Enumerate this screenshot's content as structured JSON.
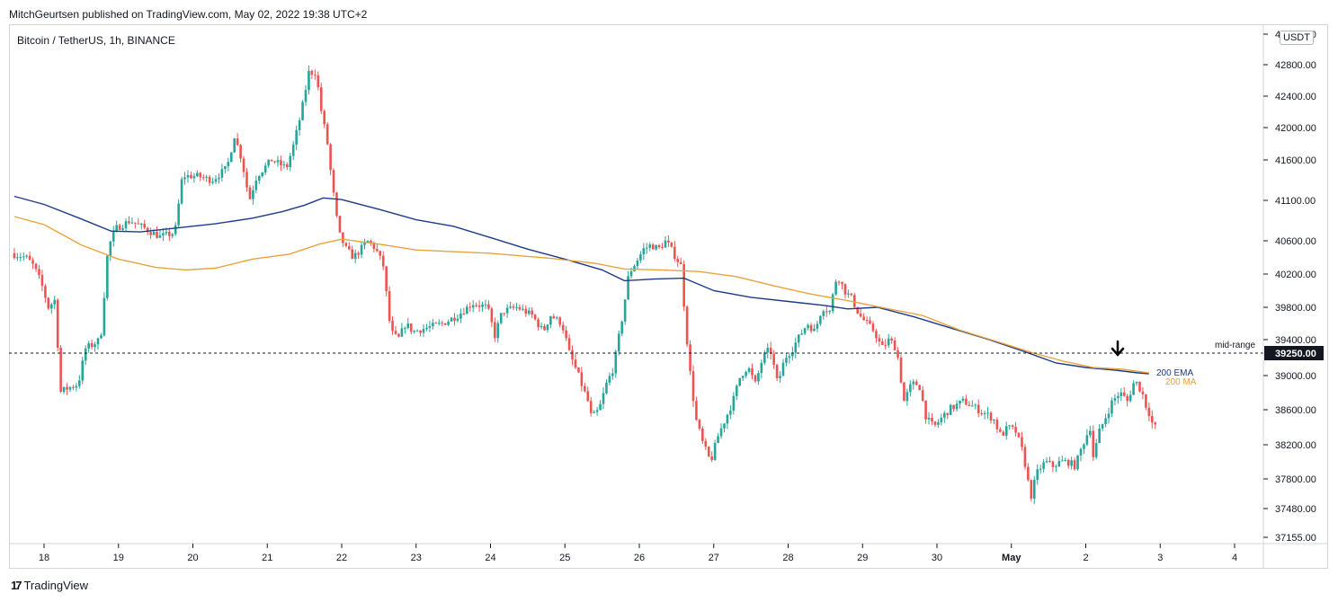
{
  "header": {
    "publisher": "MitchGeurtsen published on TradingView.com, May 02, 2022 19:38 UTC+2",
    "symbol": "Bitcoin / TetherUS, 1h, BINANCE",
    "currency": "USDT",
    "brand": "TradingView"
  },
  "chart_data": {
    "type": "candlestick",
    "title": "Bitcoin / TetherUS, 1h, BINANCE",
    "x_tick_labels": [
      "18",
      "19",
      "20",
      "21",
      "22",
      "23",
      "24",
      "25",
      "26",
      "27",
      "28",
      "29",
      "30",
      "May",
      "2",
      "3",
      "4"
    ],
    "y_tick_labels": [
      "43200.00",
      "42800.00",
      "42400.00",
      "42000.00",
      "41600.00",
      "41100.00",
      "40600.00",
      "40200.00",
      "39800.00",
      "39400.00",
      "39000.00",
      "38600.00",
      "38200.00",
      "37800.00",
      "37480.00",
      "37155.00"
    ],
    "y_ticks": [
      43200,
      42800,
      42400,
      42000,
      41600,
      41100,
      40600,
      40200,
      39800,
      39400,
      39000,
      38600,
      38200,
      37800,
      37480,
      37155
    ],
    "ylim": [
      37050,
      43300
    ],
    "xlim_days": [
      17.6,
      4.35
    ],
    "colors": {
      "up": "#26a69a",
      "down": "#ef5350",
      "ema": "#1e3a8a",
      "ma": "#e8a33d",
      "midline": "#131722"
    },
    "mid_range": {
      "label": "mid-range",
      "value": 39250,
      "value_label": "39250.00"
    },
    "series": [
      {
        "name": "200 EMA",
        "points": [
          [
            17.6,
            41150
          ],
          [
            18.0,
            41050
          ],
          [
            18.5,
            40870
          ],
          [
            18.9,
            40720
          ],
          [
            19.3,
            40710
          ],
          [
            19.8,
            40760
          ],
          [
            20.3,
            40810
          ],
          [
            20.8,
            40880
          ],
          [
            21.2,
            40960
          ],
          [
            21.5,
            41040
          ],
          [
            21.75,
            41130
          ],
          [
            22.0,
            41110
          ],
          [
            22.5,
            40990
          ],
          [
            23.0,
            40860
          ],
          [
            23.5,
            40780
          ],
          [
            24.0,
            40640
          ],
          [
            24.5,
            40500
          ],
          [
            25.0,
            40380
          ],
          [
            25.5,
            40250
          ],
          [
            25.8,
            40120
          ],
          [
            26.2,
            40140
          ],
          [
            26.6,
            40150
          ],
          [
            27.0,
            40000
          ],
          [
            27.5,
            39920
          ],
          [
            28.0,
            39870
          ],
          [
            28.5,
            39820
          ],
          [
            28.8,
            39780
          ],
          [
            29.2,
            39800
          ],
          [
            29.7,
            39680
          ],
          [
            30.2,
            39540
          ],
          [
            30.7,
            39400
          ],
          [
            31.2,
            39260
          ],
          [
            31.6,
            39140
          ],
          [
            32.0,
            39090
          ],
          [
            32.4,
            39060
          ],
          [
            32.7,
            39030
          ],
          [
            32.85,
            39020
          ]
        ]
      },
      {
        "name": "200 MA",
        "points": [
          [
            17.6,
            40900
          ],
          [
            18.0,
            40800
          ],
          [
            18.5,
            40550
          ],
          [
            19.0,
            40380
          ],
          [
            19.5,
            40280
          ],
          [
            19.9,
            40250
          ],
          [
            20.3,
            40270
          ],
          [
            20.8,
            40380
          ],
          [
            21.3,
            40440
          ],
          [
            21.7,
            40560
          ],
          [
            22.0,
            40620
          ],
          [
            22.5,
            40560
          ],
          [
            23.0,
            40490
          ],
          [
            24.0,
            40450
          ],
          [
            24.8,
            40390
          ],
          [
            25.4,
            40330
          ],
          [
            25.8,
            40260
          ],
          [
            26.3,
            40250
          ],
          [
            26.8,
            40230
          ],
          [
            27.3,
            40170
          ],
          [
            27.8,
            40060
          ],
          [
            28.3,
            39960
          ],
          [
            28.8,
            39880
          ],
          [
            29.3,
            39790
          ],
          [
            29.8,
            39700
          ],
          [
            30.3,
            39520
          ],
          [
            30.8,
            39380
          ],
          [
            31.3,
            39250
          ],
          [
            31.7,
            39160
          ],
          [
            32.1,
            39090
          ],
          [
            32.5,
            39070
          ],
          [
            32.85,
            39030
          ]
        ]
      }
    ],
    "price_path": [
      [
        17.6,
        40450
      ],
      [
        17.8,
        40400
      ],
      [
        17.9,
        40300
      ],
      [
        18.0,
        40100
      ],
      [
        18.1,
        39800
      ],
      [
        18.2,
        39900
      ],
      [
        18.25,
        38800
      ],
      [
        18.35,
        38850
      ],
      [
        18.5,
        38900
      ],
      [
        18.6,
        39300
      ],
      [
        18.7,
        39350
      ],
      [
        18.8,
        39400
      ],
      [
        18.9,
        40500
      ],
      [
        19.0,
        40750
      ],
      [
        19.2,
        40850
      ],
      [
        19.4,
        40750
      ],
      [
        19.6,
        40650
      ],
      [
        19.8,
        40700
      ],
      [
        19.9,
        41400
      ],
      [
        20.1,
        41400
      ],
      [
        20.3,
        41350
      ],
      [
        20.5,
        41500
      ],
      [
        20.6,
        41900
      ],
      [
        20.7,
        41600
      ],
      [
        20.8,
        41100
      ],
      [
        20.9,
        41400
      ],
      [
        21.1,
        41600
      ],
      [
        21.3,
        41500
      ],
      [
        21.4,
        41800
      ],
      [
        21.5,
        42200
      ],
      [
        21.6,
        42700
      ],
      [
        21.7,
        42700
      ],
      [
        21.75,
        42300
      ],
      [
        21.85,
        41800
      ],
      [
        21.9,
        41400
      ],
      [
        22.0,
        40700
      ],
      [
        22.1,
        40500
      ],
      [
        22.2,
        40400
      ],
      [
        22.3,
        40500
      ],
      [
        22.4,
        40600
      ],
      [
        22.5,
        40500
      ],
      [
        22.6,
        40300
      ],
      [
        22.7,
        39500
      ],
      [
        22.8,
        39400
      ],
      [
        22.9,
        39600
      ],
      [
        23.0,
        39500
      ],
      [
        23.2,
        39550
      ],
      [
        23.4,
        39600
      ],
      [
        23.6,
        39700
      ],
      [
        23.8,
        39850
      ],
      [
        24.0,
        39800
      ],
      [
        24.1,
        39450
      ],
      [
        24.2,
        39750
      ],
      [
        24.4,
        39800
      ],
      [
        24.6,
        39700
      ],
      [
        24.75,
        39500
      ],
      [
        24.85,
        39700
      ],
      [
        25.0,
        39600
      ],
      [
        25.1,
        39250
      ],
      [
        25.2,
        39050
      ],
      [
        25.35,
        38700
      ],
      [
        25.4,
        38500
      ],
      [
        25.5,
        38600
      ],
      [
        25.6,
        38900
      ],
      [
        25.7,
        39100
      ],
      [
        25.8,
        39600
      ],
      [
        25.9,
        40200
      ],
      [
        26.0,
        40350
      ],
      [
        26.1,
        40500
      ],
      [
        26.2,
        40550
      ],
      [
        26.3,
        40500
      ],
      [
        26.4,
        40600
      ],
      [
        26.5,
        40450
      ],
      [
        26.6,
        40300
      ],
      [
        26.7,
        39200
      ],
      [
        26.8,
        38500
      ],
      [
        26.9,
        38200
      ],
      [
        27.0,
        38000
      ],
      [
        27.1,
        38300
      ],
      [
        27.2,
        38500
      ],
      [
        27.3,
        38700
      ],
      [
        27.4,
        39000
      ],
      [
        27.5,
        39100
      ],
      [
        27.6,
        38900
      ],
      [
        27.7,
        39200
      ],
      [
        27.8,
        39300
      ],
      [
        27.9,
        38900
      ],
      [
        28.0,
        39200
      ],
      [
        28.1,
        39300
      ],
      [
        28.2,
        39450
      ],
      [
        28.3,
        39600
      ],
      [
        28.4,
        39500
      ],
      [
        28.5,
        39800
      ],
      [
        28.6,
        39750
      ],
      [
        28.7,
        40200
      ],
      [
        28.8,
        40000
      ],
      [
        28.9,
        39900
      ],
      [
        29.0,
        39700
      ],
      [
        29.1,
        39600
      ],
      [
        29.2,
        39500
      ],
      [
        29.3,
        39300
      ],
      [
        29.4,
        39400
      ],
      [
        29.5,
        39300
      ],
      [
        29.6,
        38700
      ],
      [
        29.7,
        38900
      ],
      [
        29.8,
        38900
      ],
      [
        29.9,
        38500
      ],
      [
        30.0,
        38400
      ],
      [
        30.1,
        38500
      ],
      [
        30.2,
        38600
      ],
      [
        30.4,
        38700
      ],
      [
        30.6,
        38600
      ],
      [
        30.8,
        38500
      ],
      [
        30.9,
        38300
      ],
      [
        31.0,
        38400
      ],
      [
        31.1,
        38350
      ],
      [
        31.2,
        38100
      ],
      [
        31.3,
        37600
      ],
      [
        31.4,
        37900
      ],
      [
        31.5,
        38000
      ],
      [
        31.6,
        37950
      ],
      [
        31.7,
        38000
      ],
      [
        31.8,
        38000
      ],
      [
        31.9,
        37950
      ],
      [
        32.0,
        38200
      ],
      [
        32.1,
        38400
      ],
      [
        32.15,
        38000
      ],
      [
        32.2,
        38300
      ],
      [
        32.3,
        38500
      ],
      [
        32.4,
        38700
      ],
      [
        32.5,
        38800
      ],
      [
        32.6,
        38700
      ],
      [
        32.7,
        38950
      ],
      [
        32.8,
        38800
      ],
      [
        32.85,
        38650
      ],
      [
        32.9,
        38550
      ],
      [
        32.95,
        38400
      ]
    ]
  }
}
